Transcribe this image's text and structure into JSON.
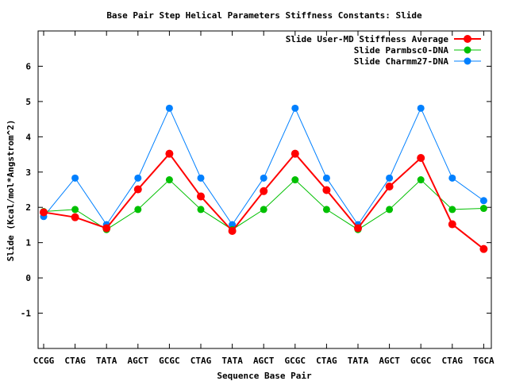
{
  "chart_data": {
    "type": "line",
    "title": "Base Pair Step Helical Parameters Stiffness Constants: Slide",
    "xlabel": "Sequence Base Pair",
    "ylabel": "Slide (Kcal/mol*Angstrom^2)",
    "ylim": [
      -2,
      7
    ],
    "yticks": [
      -1,
      0,
      1,
      2,
      3,
      4,
      5,
      6
    ],
    "ytick_labels": [
      "-1",
      "0",
      "1",
      "2",
      "3",
      "4",
      "5",
      "6"
    ],
    "categories": [
      "CCGG",
      "CTAG",
      "TATA",
      "AGCT",
      "GCGC",
      "CTAG",
      "TATA",
      "AGCT",
      "GCGC",
      "CTAG",
      "TATA",
      "AGCT",
      "GCGC",
      "CTAG",
      "TGCA"
    ],
    "legend_position": "top-right",
    "series": [
      {
        "name": "Slide User-MD Stiffness Average",
        "color": "#ff0000",
        "values": [
          1.86,
          1.72,
          1.41,
          2.51,
          3.52,
          2.31,
          1.33,
          2.46,
          3.52,
          2.49,
          1.41,
          2.59,
          3.4,
          1.52,
          0.82
        ]
      },
      {
        "name": "Slide Parmbsc0-DNA",
        "color": "#00c000",
        "values": [
          1.88,
          1.94,
          1.37,
          1.94,
          2.78,
          1.94,
          1.37,
          1.94,
          2.78,
          1.94,
          1.37,
          1.94,
          2.78,
          1.94,
          1.97
        ]
      },
      {
        "name": "Slide Charmm27-DNA",
        "color": "#0080ff",
        "values": [
          1.74,
          2.83,
          1.51,
          2.83,
          4.81,
          2.83,
          1.51,
          2.83,
          4.81,
          2.83,
          1.51,
          2.83,
          4.81,
          2.83,
          2.19
        ]
      }
    ]
  }
}
